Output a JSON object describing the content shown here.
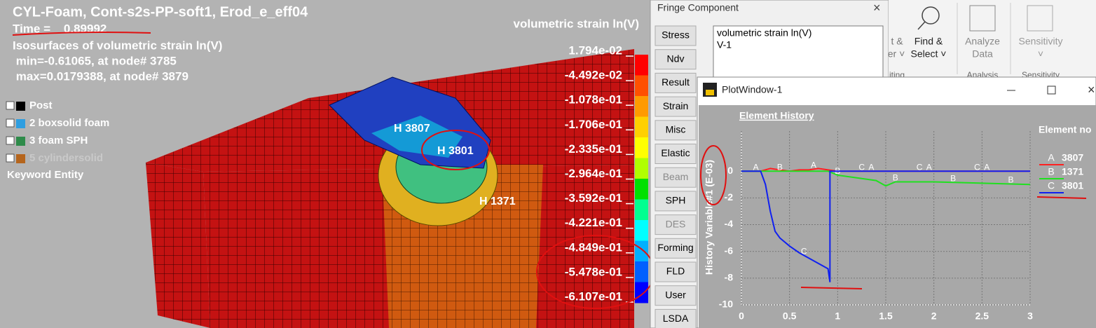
{
  "viewport": {
    "title": "CYL-Foam, Cont-s2s-PP-soft1, Erod_e_eff04",
    "time": "Time =    0.89992",
    "info": [
      "Isosurfaces of volumetric strain ln(V)",
      " min=-0.61065, at node# 3785",
      " max=0.0179388, at node# 3879"
    ],
    "tree": [
      {
        "label": "Post",
        "color": "#000000"
      },
      {
        "label": "2 boxsolid foam",
        "color": "#2f9ee0"
      },
      {
        "label": "3 foam SPH",
        "color": "#2e8b4a"
      },
      {
        "label": "5 cylindersolid",
        "color": "#b5651d"
      }
    ],
    "keyword": "Keyword Entity",
    "nodes": [
      "H 3807",
      "H 3801",
      "H 1371"
    ]
  },
  "fringe_legend": {
    "title": "volumetric strain ln(V)",
    "labels": [
      "1.794e-02",
      "-4.492e-02",
      "-1.078e-01",
      "-1.706e-01",
      "-2.335e-01",
      "-2.964e-01",
      "-3.592e-01",
      "-4.221e-01",
      "-4.849e-01",
      "-5.478e-01",
      "-6.107e-01"
    ],
    "colors": [
      "#ff0000",
      "#ff5000",
      "#ff9a00",
      "#ffd000",
      "#ffff00",
      "#b0ff00",
      "#00e000",
      "#00ff90",
      "#00ffff",
      "#00b0ff",
      "#0060ff",
      "#0000ff"
    ]
  },
  "fringe_dialog": {
    "title": "Fringe Component",
    "buttons": [
      {
        "label": "Stress",
        "enabled": true
      },
      {
        "label": "Ndv",
        "enabled": true
      },
      {
        "label": "Result",
        "enabled": true
      },
      {
        "label": "Strain",
        "enabled": true
      },
      {
        "label": "Misc",
        "enabled": true
      },
      {
        "label": "Elastic",
        "enabled": true
      },
      {
        "label": "Beam",
        "enabled": false
      },
      {
        "label": "SPH",
        "enabled": true
      },
      {
        "label": "DES",
        "enabled": false
      },
      {
        "label": "Forming",
        "enabled": true
      },
      {
        "label": "FLD",
        "enabled": true
      },
      {
        "label": "User",
        "enabled": true
      },
      {
        "label": "LSDA",
        "enabled": true
      }
    ],
    "list": [
      "volumetric strain ln(V)",
      "V-1"
    ]
  },
  "ribbon": {
    "fragments": [
      "t &",
      "er ˅"
    ],
    "find": [
      "Find &",
      "Select ˅"
    ],
    "analyze": [
      "Analyze",
      "Data"
    ],
    "sensitivity": [
      "Sensitivity",
      "˅"
    ],
    "groups": [
      "iting",
      "Analysis",
      "Sensitivity"
    ]
  },
  "plot_window": {
    "title": "PlotWindow-1",
    "chart": {
      "type": "line",
      "title": "Element History",
      "y_label": "History Variable#1 (E-03)",
      "legend_title": "Element no",
      "xlim": [
        0,
        3
      ],
      "ylim": [
        -10,
        3
      ],
      "xticks": [
        0,
        0.5,
        1,
        1.5,
        2,
        2.5,
        3
      ],
      "yticks": [
        0,
        -2,
        -4,
        -6,
        -8,
        -10
      ],
      "grid": true,
      "series": [
        {
          "name": "3807",
          "marker": "A",
          "color": "#ff2020",
          "x": [
            0,
            0.2,
            0.3,
            0.4,
            0.5,
            0.6,
            0.7,
            0.8,
            0.9,
            1.0,
            1.5,
            2,
            2.5,
            3
          ],
          "values": [
            0,
            0,
            0.2,
            0.1,
            0,
            0.1,
            0.1,
            0.2,
            0.1,
            0,
            0,
            0,
            0,
            0
          ]
        },
        {
          "name": "1371",
          "marker": "B",
          "color": "#20e020",
          "x": [
            0,
            0.2,
            0.5,
            0.9,
            1.0,
            1.2,
            1.4,
            1.5,
            1.6,
            2,
            2.5,
            3
          ],
          "values": [
            0,
            0,
            0,
            0,
            -0.3,
            -0.5,
            -0.7,
            -1.1,
            -0.8,
            -0.8,
            -0.9,
            -1.0
          ]
        },
        {
          "name": "3801",
          "marker": "C",
          "color": "#1020f0",
          "x": [
            0,
            0.2,
            0.25,
            0.3,
            0.35,
            0.4,
            0.5,
            0.6,
            0.7,
            0.8,
            0.9,
            0.92,
            0.92,
            3
          ],
          "values": [
            0,
            0,
            -1,
            -3,
            -4.5,
            -5,
            -5.6,
            -6.1,
            -6.5,
            -6.9,
            -7.3,
            -8.3,
            0,
            0
          ]
        }
      ]
    }
  }
}
